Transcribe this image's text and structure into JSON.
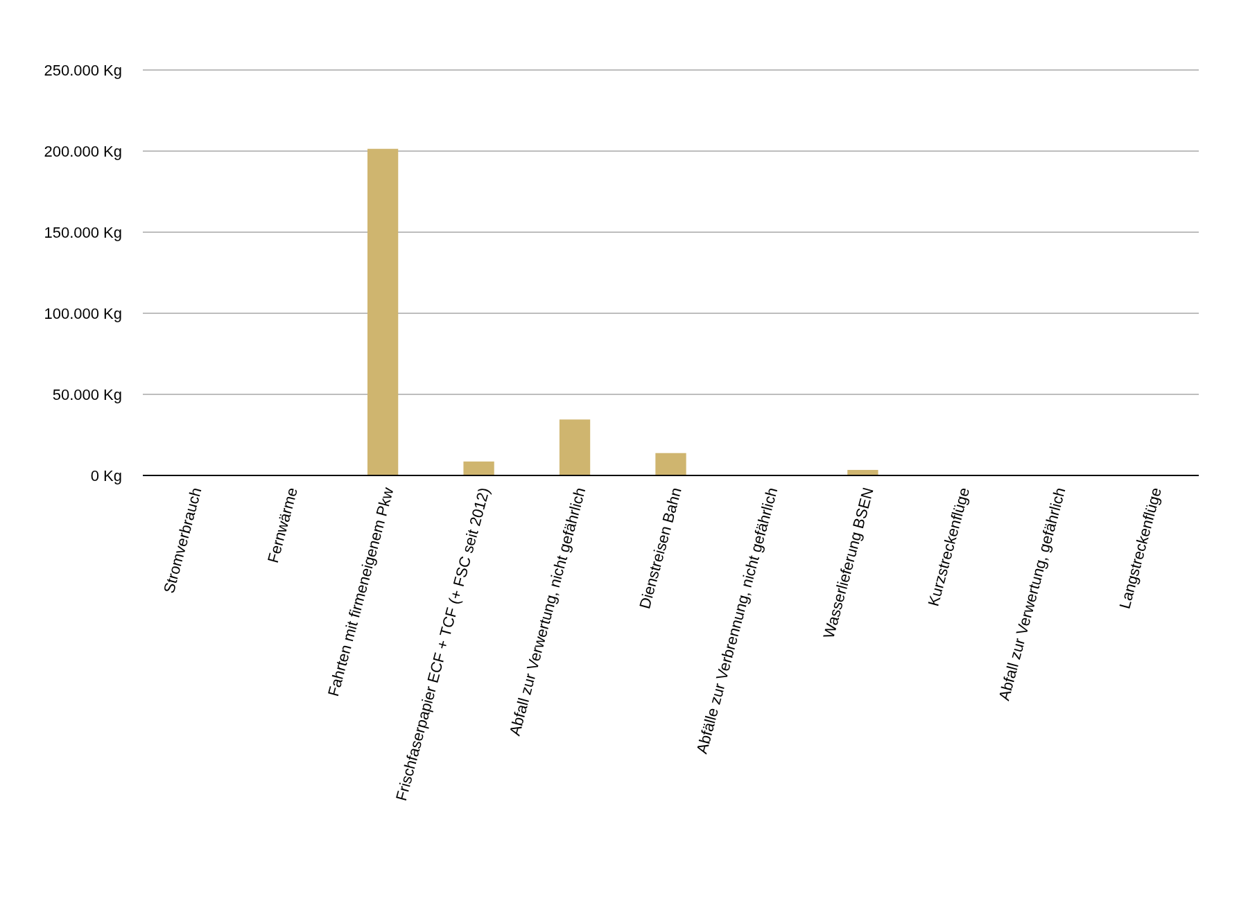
{
  "chart_data": {
    "type": "bar",
    "categories": [
      "Stromverbrauch",
      "Fernwärme",
      "Fahrten mit firmeneigenem Pkw",
      "Frischfaserpapier ECF + TCF (+ FSC seit 2012)",
      "Abfall zur Verwertung, nicht gefährlich",
      "Dienstreisen Bahn",
      "Abfälle zur Verbrennung, nicht gefährlich",
      "Wasserlieferung BSEN",
      "Kurzstreckenflüge",
      "Abfall zur Verwertung, gefährlich",
      "Langstreckenflüge"
    ],
    "values": [
      0,
      0,
      201400,
      8600,
      34500,
      13800,
      0,
      3400,
      0,
      0,
      0
    ],
    "color": "#cfb56f",
    "ylim": [
      0,
      250000
    ],
    "yticks": [
      {
        "value": 0,
        "label": "0 Kg"
      },
      {
        "value": 50000,
        "label": "50.000 Kg"
      },
      {
        "value": 100000,
        "label": "100.000 Kg"
      },
      {
        "value": 150000,
        "label": "150.000 Kg"
      },
      {
        "value": 200000,
        "label": "200.000 Kg"
      },
      {
        "value": 250000,
        "label": "250.000 Kg"
      }
    ],
    "grid": "y"
  }
}
